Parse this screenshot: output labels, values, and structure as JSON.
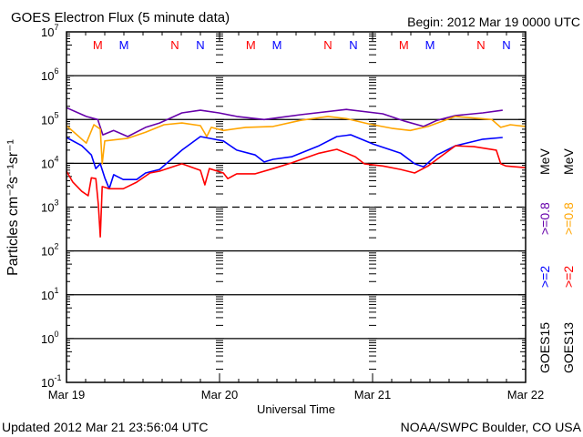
{
  "header": {
    "title": "GOES Electron Flux (5 minute data)",
    "begin": "Begin: 2012 Mar 19 0000 UTC"
  },
  "footer": {
    "updated": "Updated 2012 Mar 21 23:56:04 UTC",
    "source": "NOAA/SWPC Boulder, CO USA"
  },
  "chart_data": {
    "type": "line",
    "title": "GOES Electron Flux (5 minute data)",
    "xlabel": "Universal Time",
    "ylabel": "Particles cm⁻²s⁻¹sr⁻¹",
    "x_unit": "hours since 2012 Mar 19 0000 UTC",
    "xlim": [
      0,
      72
    ],
    "y_scale": "log10",
    "ylim_log10": [
      -1,
      7
    ],
    "x_tick_labels": [
      {
        "hour": 0,
        "label": "Mar 19"
      },
      {
        "hour": 24,
        "label": "Mar 20"
      },
      {
        "hour": 48,
        "label": "Mar 21"
      },
      {
        "hour": 72,
        "label": "Mar 22"
      }
    ],
    "y_tick_exponents": [
      "7",
      "6",
      "5",
      "4",
      "3",
      "2",
      "1",
      "0",
      "-1"
    ],
    "y_tick_base": "10",
    "grid_solid_log10": [
      6,
      5,
      4,
      2,
      1,
      0
    ],
    "grid_dashed_log10": [
      3
    ],
    "top_markers": [
      {
        "hour": 4.9,
        "label": "M",
        "color": "#ff0000"
      },
      {
        "hour": 9.0,
        "label": "M",
        "color": "#0000ff"
      },
      {
        "hour": 17.0,
        "label": "N",
        "color": "#ff0000"
      },
      {
        "hour": 21.0,
        "label": "N",
        "color": "#0000ff"
      },
      {
        "hour": 28.9,
        "label": "M",
        "color": "#ff0000"
      },
      {
        "hour": 33.0,
        "label": "M",
        "color": "#0000ff"
      },
      {
        "hour": 41.0,
        "label": "N",
        "color": "#ff0000"
      },
      {
        "hour": 45.0,
        "label": "N",
        "color": "#0000ff"
      },
      {
        "hour": 52.9,
        "label": "M",
        "color": "#ff0000"
      },
      {
        "hour": 57.0,
        "label": "M",
        "color": "#0000ff"
      },
      {
        "hour": 65.0,
        "label": "N",
        "color": "#ff0000"
      },
      {
        "hour": 69.0,
        "label": "N",
        "color": "#0000ff"
      }
    ],
    "legend": {
      "placement": "right",
      "columns": [
        {
          "satellite": "GOES15",
          "entries": [
            {
              "label": ">=2",
              "color": "#0000ff"
            },
            {
              "label": ">=0.8",
              "color": "#6600aa"
            }
          ],
          "unit": "MeV"
        },
        {
          "satellite": "GOES13",
          "entries": [
            {
              "label": ">=2",
              "color": "#ff0000"
            },
            {
              "label": ">=0.8",
              "color": "#ffa500"
            }
          ],
          "unit": "MeV"
        }
      ]
    },
    "series": [
      {
        "name": "GOES15 >=0.8 MeV",
        "color": "#6600aa",
        "points_hour_log10": [
          [
            0,
            5.27
          ],
          [
            3.1,
            5.07
          ],
          [
            4.9,
            5.0
          ],
          [
            5.7,
            4.65
          ],
          [
            7.4,
            4.75
          ],
          [
            9.6,
            4.61
          ],
          [
            12.4,
            4.82
          ],
          [
            14.6,
            4.92
          ],
          [
            18.1,
            5.15
          ],
          [
            21,
            5.21
          ],
          [
            23.9,
            5.15
          ],
          [
            26.7,
            5.07
          ],
          [
            31,
            5.0
          ],
          [
            36.7,
            5.11
          ],
          [
            43.9,
            5.23
          ],
          [
            49.6,
            5.13
          ],
          [
            53.1,
            4.96
          ],
          [
            56,
            4.84
          ],
          [
            58.1,
            4.98
          ],
          [
            61,
            5.09
          ],
          [
            65.3,
            5.15
          ],
          [
            68.4,
            5.21
          ]
        ]
      },
      {
        "name": "GOES13 >=0.8 MeV",
        "color": "#ffa500",
        "points_hour_log10": [
          [
            0,
            4.86
          ],
          [
            3.1,
            4.46
          ],
          [
            4.3,
            4.88
          ],
          [
            5.3,
            4.78
          ],
          [
            5.6,
            3.99
          ],
          [
            6,
            4.51
          ],
          [
            9.6,
            4.57
          ],
          [
            12.4,
            4.71
          ],
          [
            15.3,
            4.88
          ],
          [
            18.1,
            4.92
          ],
          [
            21,
            4.86
          ],
          [
            22,
            4.61
          ],
          [
            22.7,
            4.82
          ],
          [
            24.6,
            4.75
          ],
          [
            28.1,
            4.82
          ],
          [
            32.4,
            4.84
          ],
          [
            36.7,
            4.98
          ],
          [
            41,
            5.07
          ],
          [
            43.9,
            5.02
          ],
          [
            47.4,
            4.9
          ],
          [
            51,
            4.8
          ],
          [
            53.9,
            4.75
          ],
          [
            56.7,
            4.84
          ],
          [
            61,
            5.07
          ],
          [
            66.7,
            5.0
          ],
          [
            68.1,
            4.82
          ],
          [
            69.6,
            4.88
          ],
          [
            72,
            4.84
          ]
        ]
      },
      {
        "name": "GOES15 >=2 MeV",
        "color": "#0000ff",
        "points_hour_log10": [
          [
            0,
            4.59
          ],
          [
            2.4,
            4.4
          ],
          [
            3.9,
            4.19
          ],
          [
            4.6,
            3.88
          ],
          [
            5.3,
            3.99
          ],
          [
            6,
            3.67
          ],
          [
            6.7,
            3.42
          ],
          [
            7.4,
            3.74
          ],
          [
            8.9,
            3.63
          ],
          [
            11,
            3.63
          ],
          [
            12.4,
            3.78
          ],
          [
            14.6,
            3.86
          ],
          [
            18.1,
            4.3
          ],
          [
            21,
            4.61
          ],
          [
            22.4,
            4.57
          ],
          [
            24.6,
            4.51
          ],
          [
            26.7,
            4.3
          ],
          [
            29.6,
            4.19
          ],
          [
            31,
            4.03
          ],
          [
            32.4,
            4.09
          ],
          [
            35.3,
            4.15
          ],
          [
            39.6,
            4.4
          ],
          [
            42.4,
            4.61
          ],
          [
            44.6,
            4.65
          ],
          [
            48.1,
            4.44
          ],
          [
            52.4,
            4.23
          ],
          [
            54.6,
            3.99
          ],
          [
            56,
            3.92
          ],
          [
            58.1,
            4.19
          ],
          [
            61,
            4.4
          ],
          [
            65.3,
            4.55
          ],
          [
            68.4,
            4.59
          ]
        ]
      },
      {
        "name": "GOES13 >=2 MeV",
        "color": "#ff0000",
        "points_hour_log10": [
          [
            0,
            3.82
          ],
          [
            1,
            3.57
          ],
          [
            2.4,
            3.36
          ],
          [
            3.4,
            3.26
          ],
          [
            3.9,
            3.67
          ],
          [
            4.6,
            3.65
          ],
          [
            5,
            3.05
          ],
          [
            5.3,
            2.32
          ],
          [
            5.6,
            3.47
          ],
          [
            6.7,
            3.42
          ],
          [
            8.9,
            3.42
          ],
          [
            11,
            3.57
          ],
          [
            13.1,
            3.78
          ],
          [
            14.6,
            3.82
          ],
          [
            18.1,
            3.99
          ],
          [
            21,
            3.84
          ],
          [
            21.7,
            3.51
          ],
          [
            22.4,
            3.88
          ],
          [
            24.6,
            3.78
          ],
          [
            25.3,
            3.65
          ],
          [
            26.7,
            3.76
          ],
          [
            29.6,
            3.76
          ],
          [
            32.4,
            3.88
          ],
          [
            35.3,
            4.01
          ],
          [
            39.6,
            4.23
          ],
          [
            42.4,
            4.32
          ],
          [
            45.3,
            4.15
          ],
          [
            46.7,
            3.99
          ],
          [
            49.6,
            3.94
          ],
          [
            52.4,
            3.86
          ],
          [
            54.6,
            3.78
          ],
          [
            56.7,
            3.94
          ],
          [
            58.1,
            4.09
          ],
          [
            61,
            4.4
          ],
          [
            63.9,
            4.38
          ],
          [
            67.4,
            4.3
          ],
          [
            68.1,
            3.99
          ],
          [
            68.9,
            3.94
          ],
          [
            72,
            3.9
          ]
        ]
      }
    ]
  }
}
